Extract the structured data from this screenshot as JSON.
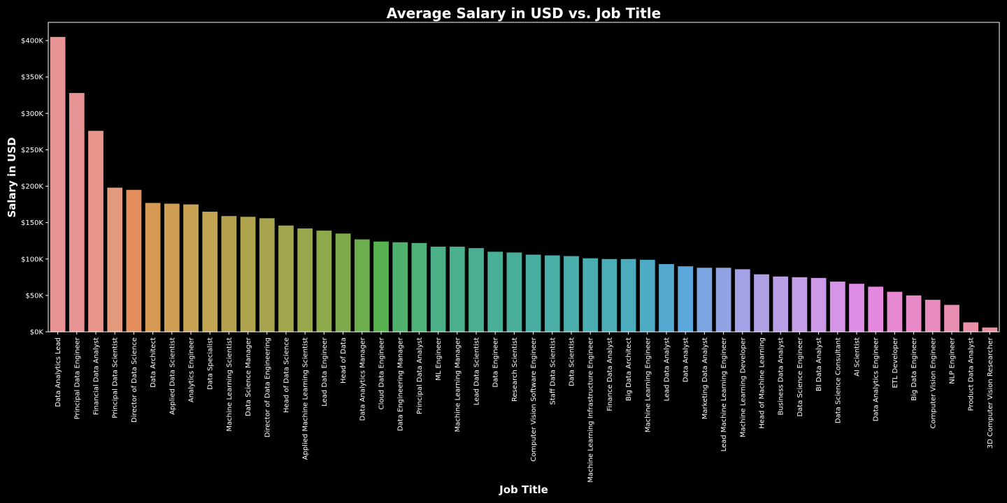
{
  "chart_data": {
    "type": "bar",
    "title": "Average Salary in USD vs. Job Title",
    "xlabel": "Job Title",
    "ylabel": "Salary in USD",
    "ylim": [
      0,
      425000
    ],
    "yticks": [
      0,
      50000,
      100000,
      150000,
      200000,
      250000,
      300000,
      350000,
      400000
    ],
    "ytick_labels": [
      "$0K",
      "$50K",
      "$100K",
      "$150K",
      "$200K",
      "$250K",
      "$300K",
      "$350K",
      "$400K"
    ],
    "grid": false,
    "categories": [
      "Data Analytics Lead",
      "Principal Data Engineer",
      "Financial Data Analyst",
      "Principal Data Scientist",
      "Director of Data Science",
      "Data Architect",
      "Applied Data Scientist",
      "Analytics Engineer",
      "Data Specialist",
      "Machine Learning Scientist",
      "Data Science Manager",
      "Director of Data Engineering",
      "Head of Data Science",
      "Applied Machine Learning Scientist",
      "Lead Data Engineer",
      "Head of Data",
      "Data Analytics Manager",
      "Cloud Data Engineer",
      "Data Engineering Manager",
      "Principal Data Analyst",
      "ML Engineer",
      "Machine Learning Manager",
      "Lead Data Scientist",
      "Data Engineer",
      "Research Scientist",
      "Computer Vision Software Engineer",
      "Staff Data Scientist",
      "Data Scientist",
      "Machine Learning Infrastructure Engineer",
      "Finance Data Analyst",
      "Big Data Architect",
      "Machine Learning Engineer",
      "Lead Data Analyst",
      "Data Analyst",
      "Marketing Data Analyst",
      "Lead Machine Learning Engineer",
      "Machine Learning Developer",
      "Head of Machine Learning",
      "Business Data Analyst",
      "Data Science Engineer",
      "BI Data Analyst",
      "Data Science Consultant",
      "AI Scientist",
      "Data Analytics Engineer",
      "ETL Developer",
      "Big Data Engineer",
      "Computer Vision Engineer",
      "NLP Engineer",
      "Product Data Analyst",
      "3D Computer Vision Researcher"
    ],
    "values": [
      405000,
      328000,
      276000,
      198000,
      195000,
      177000,
      176000,
      175000,
      165000,
      159000,
      158000,
      156000,
      146000,
      142000,
      139000,
      135000,
      127000,
      124000,
      123000,
      122000,
      117000,
      117000,
      115000,
      110000,
      109000,
      106000,
      105000,
      104000,
      101000,
      100000,
      100000,
      99000,
      93000,
      90000,
      88000,
      88000,
      86000,
      79000,
      76000,
      75000,
      74000,
      69000,
      66000,
      62000,
      55000,
      50000,
      44000,
      37000,
      13000,
      6000
    ],
    "colors": [
      "#e89494",
      "#e89494",
      "#e8968b",
      "#e49a7c",
      "#e38f5d",
      "#d69a55",
      "#cf9f55",
      "#c9a353",
      "#c2a352",
      "#b5a24f",
      "#b0a44e",
      "#a8a54e",
      "#a0a64d",
      "#98a74c",
      "#8ea84c",
      "#80ab4c",
      "#6cae4d",
      "#58b14f",
      "#4fb16c",
      "#4db178",
      "#4bb085",
      "#4aaf8c",
      "#4aaf92",
      "#4aaf97",
      "#49ae9c",
      "#49aea1",
      "#49aea6",
      "#4aaeab",
      "#4aadb1",
      "#4badb7",
      "#4cacbd",
      "#4eabc6",
      "#54a9d0",
      "#5ca7dc",
      "#7ba5e0",
      "#91a3e3",
      "#a3a2e6",
      "#afa0e6",
      "#b99fe6",
      "#c39de6",
      "#cc99e6",
      "#d694e6",
      "#df8ee6",
      "#e589e0",
      "#e889d3",
      "#e88ac8",
      "#e88cbd",
      "#e88eb3",
      "#e890a8",
      "#e8929e"
    ]
  }
}
